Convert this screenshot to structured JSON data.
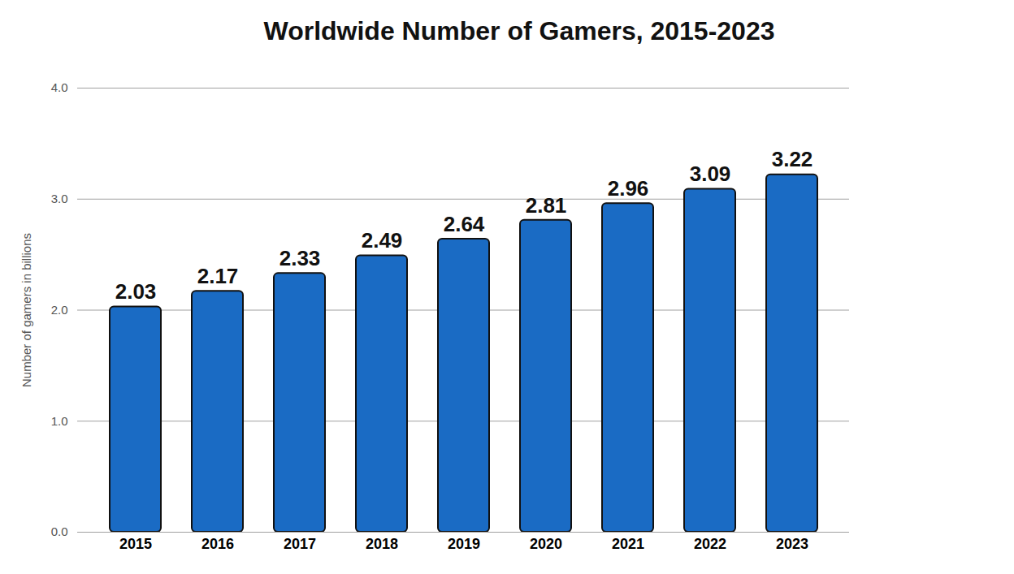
{
  "chart_data": {
    "type": "bar",
    "title": "Worldwide Number of Gamers, 2015-2023",
    "y_label": "Number of gamers in billions",
    "categories": [
      "2015",
      "2016",
      "2017",
      "2018",
      "2019",
      "2020",
      "2021",
      "2022",
      "2023"
    ],
    "values": [
      2.03,
      2.17,
      2.33,
      2.49,
      2.64,
      2.81,
      2.96,
      3.09,
      3.22
    ],
    "color": "#1a6bc4",
    "ylim": [
      0,
      4
    ],
    "yticks": [
      0,
      1,
      2,
      3,
      4
    ],
    "grid": true,
    "data_labels": true
  }
}
